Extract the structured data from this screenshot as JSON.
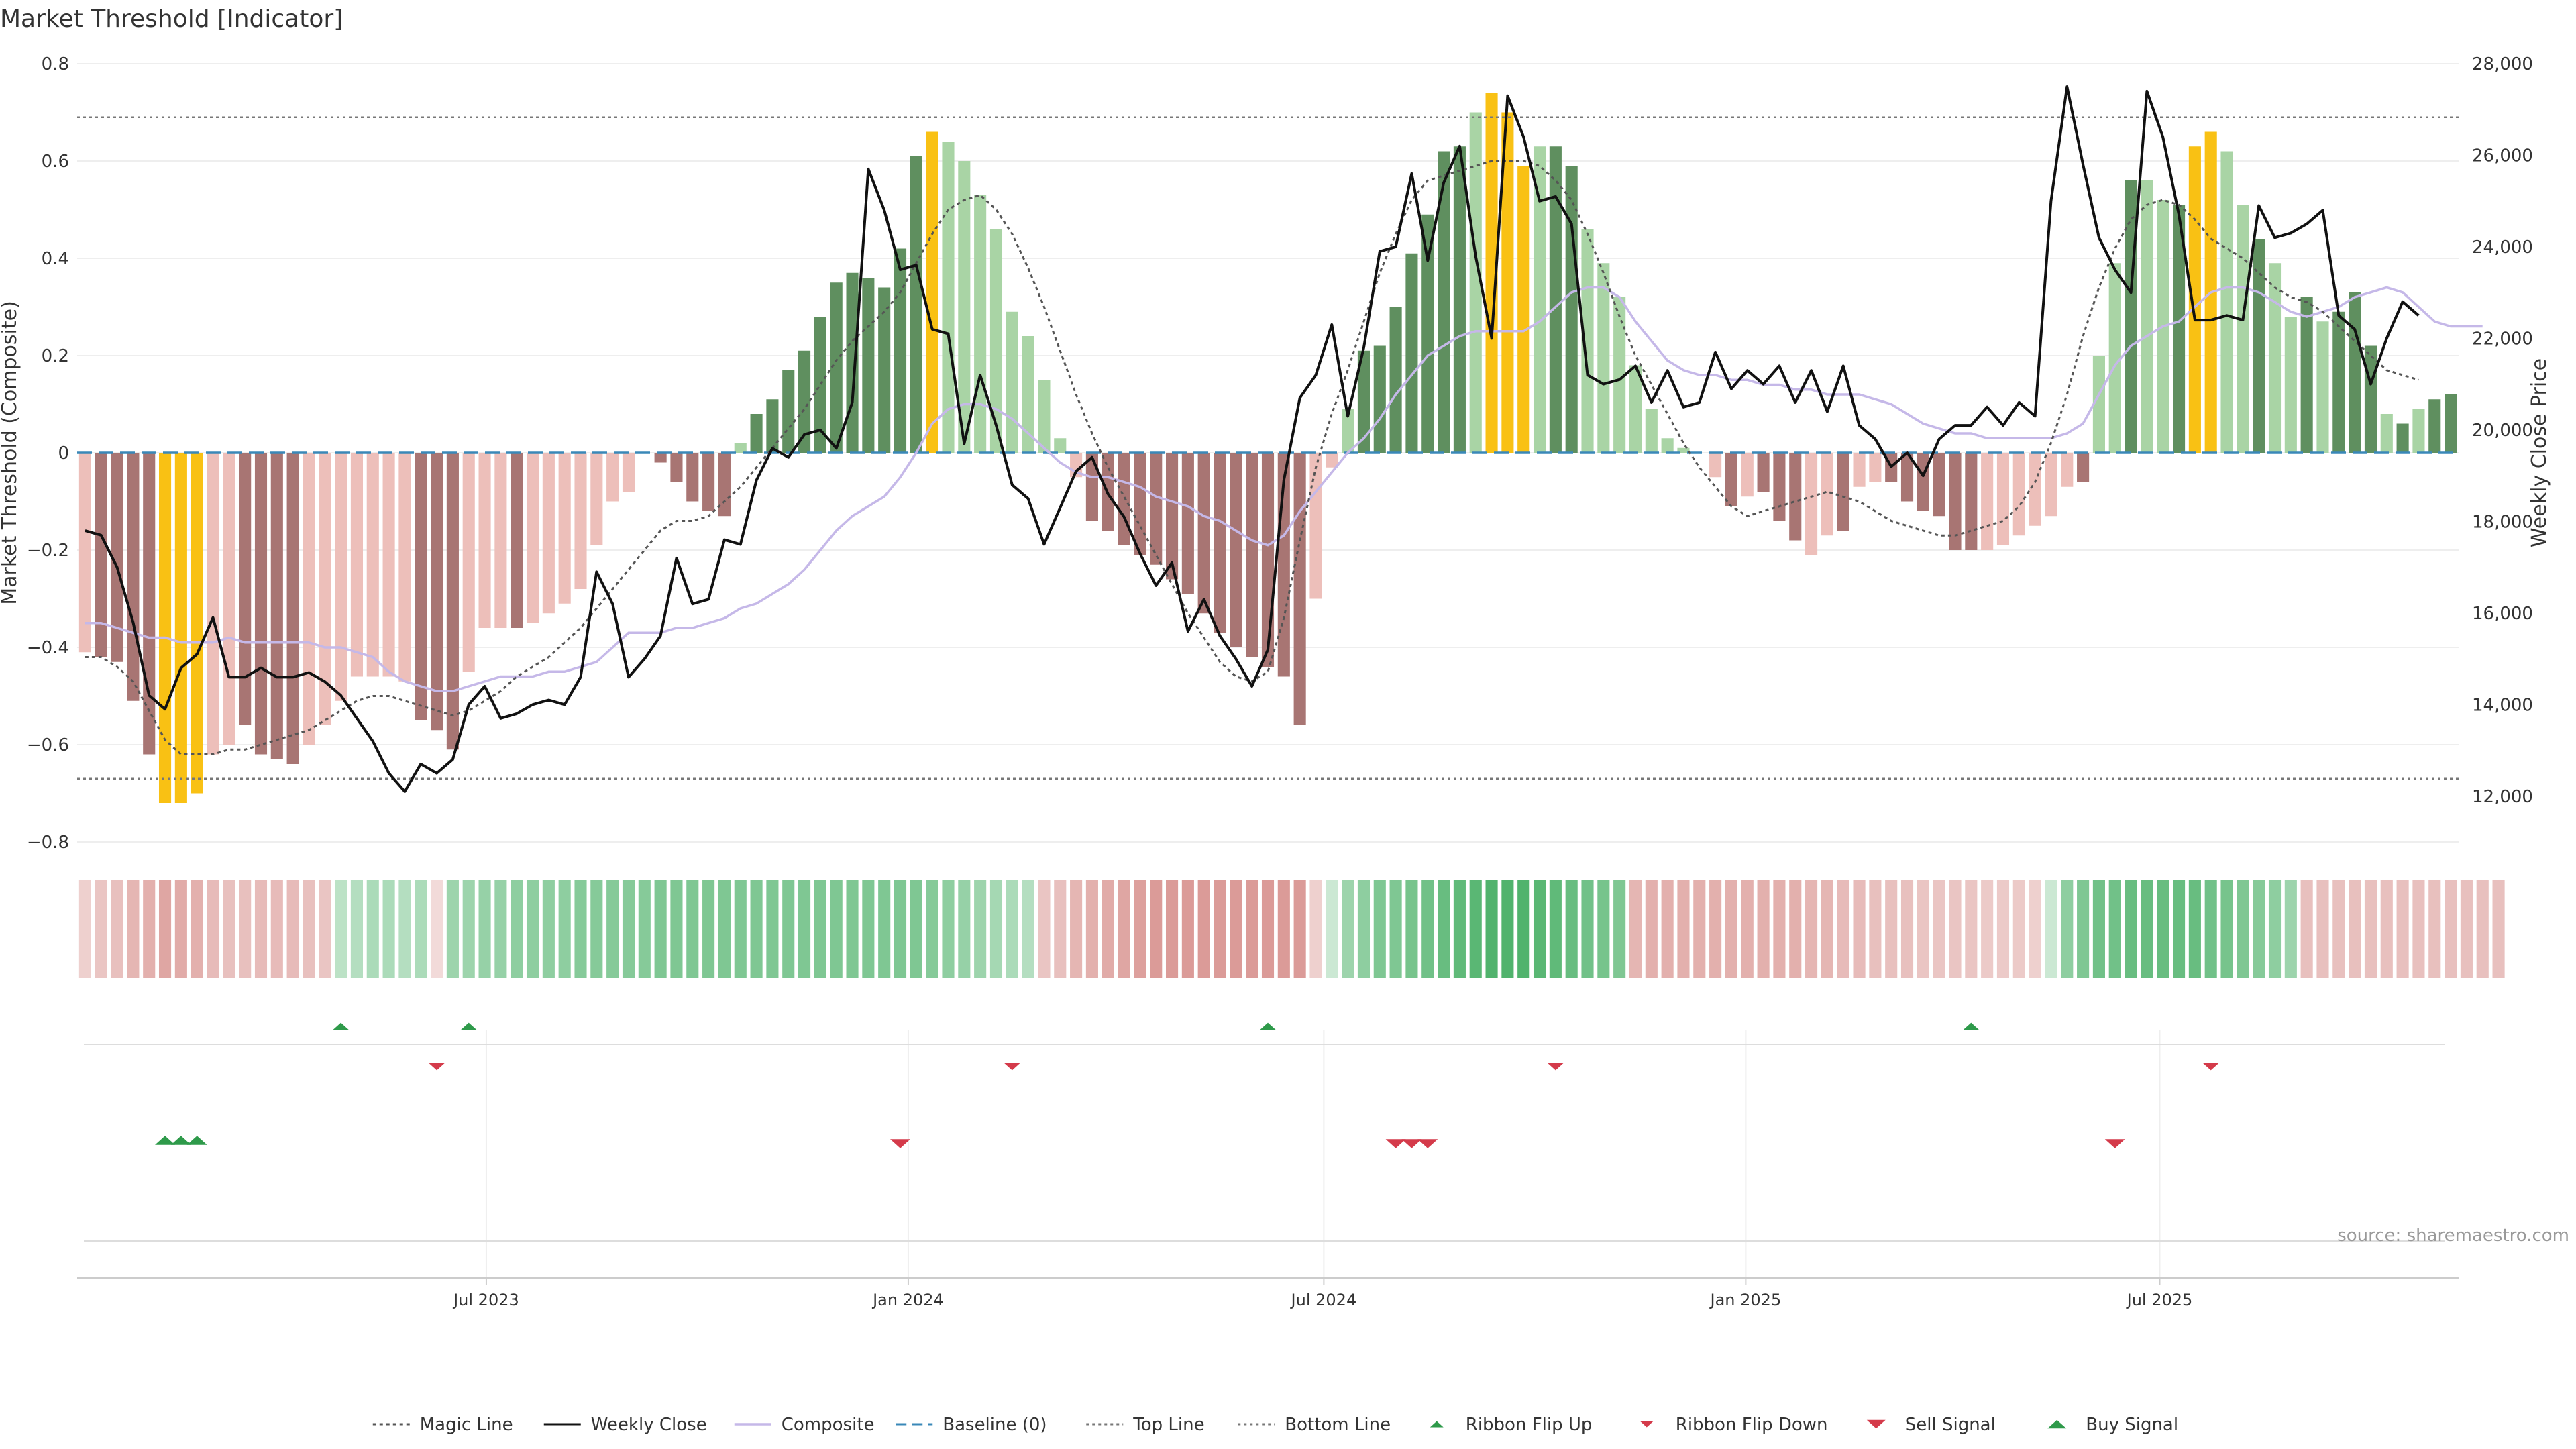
{
  "title": "Market Threshold [Indicator]",
  "source_text": "source: sharemaestro.com",
  "colors": {
    "pos_strong": "#5f8f5f",
    "pos_weak": "#a9d4a5",
    "neg_strong": "#a87573",
    "neg_weak": "#edbfba",
    "extreme": "#f9c114",
    "weekly_close": "#111111",
    "composite": "#c5b8e8",
    "magic": "#555555",
    "baseline": "#3a88b8",
    "threshold": "#777777",
    "buy": "#2e9a4a",
    "sell": "#d43a4a",
    "grid": "#eeeeee",
    "axis": "#cccccc",
    "text": "#333333"
  },
  "legend": [
    {
      "label": "Magic Line",
      "kind": "line-dotted"
    },
    {
      "label": "Weekly Close",
      "kind": "line-solid"
    },
    {
      "label": "Composite",
      "kind": "line-composite"
    },
    {
      "label": "Baseline (0)",
      "kind": "line-dashed"
    },
    {
      "label": "Top Line",
      "kind": "line-dotted-light"
    },
    {
      "label": "Bottom Line",
      "kind": "line-dotted-light"
    },
    {
      "label": "Ribbon Flip Up",
      "kind": "tri-up"
    },
    {
      "label": "Ribbon Flip Down",
      "kind": "tri-down"
    },
    {
      "label": "Sell Signal",
      "kind": "tri-down-big"
    },
    {
      "label": "Buy Signal",
      "kind": "tri-up-big"
    }
  ],
  "chart_data": {
    "type": "bar",
    "title": "Market Threshold [Indicator]",
    "ylabel": "Market Threshold (Composite)",
    "y2label": "Weekly Close Price",
    "ylim": [
      -0.8,
      0.8
    ],
    "y2lim": [
      11000,
      28000
    ],
    "yticks": [
      -0.8,
      -0.6,
      -0.4,
      -0.2,
      0,
      0.2,
      0.4,
      0.6,
      0.8
    ],
    "yticklabels": [
      "−0.8",
      "−0.6",
      "−0.4",
      "−0.2",
      "0",
      "0.2",
      "0.4",
      "0.6",
      "0.8"
    ],
    "y2ticks": [
      12000,
      14000,
      16000,
      18000,
      20000,
      22000,
      24000,
      26000,
      28000
    ],
    "y2ticklabels": [
      "12,000",
      "14,000",
      "16,000",
      "18,000",
      "20,000",
      "22,000",
      "24,000",
      "26,000",
      "28,000"
    ],
    "x_start": "2023-01-06",
    "x_weeks": 145,
    "xticks": [
      {
        "label": "Jul 2023",
        "week": 25.6
      },
      {
        "label": "Jan 2024",
        "week": 52.0
      },
      {
        "label": "Jul 2024",
        "week": 78.0
      },
      {
        "label": "Jan 2025",
        "week": 104.4
      },
      {
        "label": "Jul 2025",
        "week": 130.3
      }
    ],
    "top_line": 0.69,
    "bottom_line": -0.67,
    "baseline": 0,
    "bars": [
      -0.41,
      -0.42,
      -0.43,
      -0.51,
      -0.62,
      -0.72,
      -0.72,
      -0.7,
      -0.62,
      -0.6,
      -0.56,
      -0.62,
      -0.63,
      -0.64,
      -0.6,
      -0.56,
      -0.51,
      -0.46,
      -0.46,
      -0.46,
      -0.47,
      -0.55,
      -0.57,
      -0.61,
      -0.45,
      -0.36,
      -0.36,
      -0.36,
      -0.35,
      -0.33,
      -0.31,
      -0.28,
      -0.19,
      -0.1,
      -0.08,
      0,
      -0.02,
      -0.06,
      -0.1,
      -0.12,
      -0.13,
      0.02,
      0.08,
      0.11,
      0.17,
      0.21,
      0.28,
      0.35,
      0.37,
      0.36,
      0.34,
      0.42,
      0.61,
      0.66,
      0.64,
      0.6,
      0.53,
      0.46,
      0.29,
      0.24,
      0.15,
      0.03,
      -0.05,
      -0.14,
      -0.16,
      -0.19,
      -0.21,
      -0.23,
      -0.26,
      -0.29,
      -0.33,
      -0.37,
      -0.4,
      -0.42,
      -0.44,
      -0.46,
      -0.56,
      -0.3,
      -0.03,
      0.09,
      0.21,
      0.22,
      0.3,
      0.41,
      0.49,
      0.62,
      0.63,
      0.7,
      0.74,
      0.7,
      0.59,
      0.63,
      0.63,
      0.59,
      0.46,
      0.39,
      0.32,
      0.18,
      0.09,
      0.03,
      0.01,
      0,
      -0.05,
      -0.11,
      -0.09,
      -0.08,
      -0.14,
      -0.18,
      -0.21,
      -0.17,
      -0.16,
      -0.07,
      -0.06,
      -0.06,
      -0.1,
      -0.12,
      -0.13,
      -0.2,
      -0.2,
      -0.2,
      -0.19,
      -0.17,
      -0.15,
      -0.13,
      -0.07,
      -0.06,
      0.2,
      0.39,
      0.56,
      0.56,
      0.52,
      0.51,
      0.63,
      0.66,
      0.62,
      0.51,
      0.44,
      0.39,
      0.28,
      0.32,
      0.27,
      0.29,
      0.33,
      0.22,
      0.08,
      0.06,
      0.09,
      0.11,
      0.12
    ],
    "bar_kind": [
      "w",
      "s",
      "s",
      "s",
      "s",
      "e",
      "e",
      "e",
      "w",
      "w",
      "s",
      "s",
      "s",
      "s",
      "w",
      "w",
      "w",
      "w",
      "w",
      "w",
      "w",
      "s",
      "s",
      "s",
      "w",
      "w",
      "w",
      "s",
      "w",
      "w",
      "w",
      "w",
      "w",
      "w",
      "w",
      "w",
      "s",
      "s",
      "s",
      "s",
      "s",
      "w",
      "s",
      "s",
      "s",
      "s",
      "s",
      "s",
      "s",
      "s",
      "s",
      "s",
      "s",
      "e",
      "w",
      "w",
      "w",
      "w",
      "w",
      "w",
      "w",
      "w",
      "w",
      "s",
      "s",
      "s",
      "s",
      "s",
      "s",
      "s",
      "s",
      "s",
      "s",
      "s",
      "s",
      "s",
      "s",
      "w",
      "w",
      "w",
      "s",
      "s",
      "s",
      "s",
      "s",
      "s",
      "s",
      "w",
      "e",
      "e",
      "e",
      "w",
      "s",
      "s",
      "w",
      "w",
      "w",
      "w",
      "w",
      "w",
      "w",
      "w",
      "w",
      "s",
      "w",
      "s",
      "s",
      "s",
      "w",
      "w",
      "s",
      "w",
      "w",
      "s",
      "s",
      "s",
      "s",
      "s",
      "s",
      "w",
      "w",
      "w",
      "w",
      "w",
      "w",
      "s",
      "w",
      "w",
      "s",
      "w",
      "w",
      "s",
      "e",
      "e",
      "w",
      "w",
      "s",
      "w",
      "w",
      "s",
      "w",
      "s",
      "s",
      "s",
      "w",
      "s",
      "w",
      "s",
      "s"
    ],
    "weekly_close": [
      17800,
      17700,
      17000,
      15800,
      14200,
      13900,
      14800,
      15100,
      15900,
      14600,
      14600,
      14800,
      14600,
      14600,
      14700,
      14500,
      14200,
      13700,
      13200,
      12500,
      12100,
      12700,
      12500,
      12800,
      14000,
      14400,
      13700,
      13800,
      14000,
      14100,
      14000,
      14600,
      16900,
      16200,
      14600,
      15000,
      15500,
      17200,
      16200,
      16300,
      17600,
      17500,
      18900,
      19600,
      19400,
      19900,
      20000,
      19600,
      20600,
      25700,
      24800,
      23500,
      23600,
      22200,
      22100,
      19700,
      21200,
      20100,
      18800,
      18500,
      17500,
      18300,
      19100,
      19400,
      18600,
      18100,
      17300,
      16600,
      17100,
      15600,
      16300,
      15500,
      15000,
      14400,
      15200,
      18900,
      20700,
      21200,
      22300,
      20300,
      21800,
      23900,
      24000,
      25600,
      23700,
      25400,
      26200,
      23800,
      22000,
      27300,
      26400,
      25000,
      25100,
      24500,
      21200,
      21000,
      21100,
      21400,
      20600,
      21300,
      20500,
      20600,
      21700,
      20900,
      21300,
      21000,
      21400,
      20600,
      21300,
      20400,
      21400,
      20100,
      19800,
      19200,
      19500,
      19000,
      19800,
      20100,
      20100,
      20500,
      20100,
      20600,
      20300,
      25000,
      27500,
      25800,
      24200,
      23500,
      23000,
      27400,
      26400,
      24700,
      22400,
      22400,
      22500,
      22400,
      24900,
      24200,
      24300,
      24500,
      24800,
      22500,
      22200,
      21000,
      22000,
      22800,
      22500
    ],
    "composite": [
      -0.35,
      -0.35,
      -0.36,
      -0.37,
      -0.38,
      -0.38,
      -0.39,
      -0.39,
      -0.39,
      -0.38,
      -0.39,
      -0.39,
      -0.39,
      -0.39,
      -0.39,
      -0.4,
      -0.4,
      -0.41,
      -0.42,
      -0.45,
      -0.47,
      -0.48,
      -0.49,
      -0.49,
      -0.48,
      -0.47,
      -0.46,
      -0.46,
      -0.46,
      -0.45,
      -0.45,
      -0.44,
      -0.43,
      -0.4,
      -0.37,
      -0.37,
      -0.37,
      -0.36,
      -0.36,
      -0.35,
      -0.34,
      -0.32,
      -0.31,
      -0.29,
      -0.27,
      -0.24,
      -0.2,
      -0.16,
      -0.13,
      -0.11,
      -0.09,
      -0.05,
      0.0,
      0.06,
      0.09,
      0.1,
      0.1,
      0.09,
      0.07,
      0.04,
      0.01,
      -0.02,
      -0.04,
      -0.05,
      -0.05,
      -0.06,
      -0.07,
      -0.09,
      -0.1,
      -0.11,
      -0.13,
      -0.14,
      -0.16,
      -0.18,
      -0.19,
      -0.17,
      -0.12,
      -0.08,
      -0.04,
      0.0,
      0.03,
      0.07,
      0.12,
      0.16,
      0.2,
      0.22,
      0.24,
      0.25,
      0.25,
      0.25,
      0.25,
      0.27,
      0.3,
      0.33,
      0.34,
      0.34,
      0.32,
      0.27,
      0.23,
      0.19,
      0.17,
      0.16,
      0.16,
      0.15,
      0.15,
      0.14,
      0.14,
      0.13,
      0.13,
      0.12,
      0.12,
      0.12,
      0.11,
      0.1,
      0.08,
      0.06,
      0.05,
      0.04,
      0.04,
      0.03,
      0.03,
      0.03,
      0.03,
      0.03,
      0.04,
      0.06,
      0.12,
      0.18,
      0.22,
      0.24,
      0.26,
      0.27,
      0.3,
      0.33,
      0.34,
      0.34,
      0.33,
      0.31,
      0.29,
      0.28,
      0.29,
      0.3,
      0.32,
      0.33,
      0.34,
      0.33,
      0.3,
      0.27,
      0.26,
      0.26,
      0.26
    ],
    "magic_line": [
      -0.42,
      -0.42,
      -0.44,
      -0.47,
      -0.53,
      -0.59,
      -0.62,
      -0.62,
      -0.62,
      -0.61,
      -0.61,
      -0.6,
      -0.59,
      -0.58,
      -0.57,
      -0.55,
      -0.53,
      -0.51,
      -0.5,
      -0.5,
      -0.51,
      -0.52,
      -0.53,
      -0.54,
      -0.53,
      -0.51,
      -0.49,
      -0.46,
      -0.44,
      -0.42,
      -0.39,
      -0.36,
      -0.32,
      -0.28,
      -0.24,
      -0.2,
      -0.16,
      -0.14,
      -0.14,
      -0.13,
      -0.1,
      -0.07,
      -0.03,
      0.01,
      0.05,
      0.09,
      0.14,
      0.19,
      0.23,
      0.26,
      0.29,
      0.33,
      0.39,
      0.45,
      0.5,
      0.52,
      0.53,
      0.5,
      0.45,
      0.38,
      0.3,
      0.21,
      0.12,
      0.04,
      -0.03,
      -0.09,
      -0.15,
      -0.21,
      -0.27,
      -0.33,
      -0.38,
      -0.43,
      -0.46,
      -0.47,
      -0.45,
      -0.34,
      -0.18,
      -0.03,
      0.08,
      0.17,
      0.27,
      0.37,
      0.45,
      0.52,
      0.56,
      0.57,
      0.58,
      0.59,
      0.6,
      0.6,
      0.6,
      0.59,
      0.56,
      0.52,
      0.45,
      0.37,
      0.28,
      0.2,
      0.14,
      0.08,
      0.02,
      -0.03,
      -0.07,
      -0.11,
      -0.13,
      -0.12,
      -0.11,
      -0.1,
      -0.09,
      -0.08,
      -0.09,
      -0.1,
      -0.12,
      -0.14,
      -0.15,
      -0.16,
      -0.17,
      -0.17,
      -0.16,
      -0.15,
      -0.14,
      -0.11,
      -0.06,
      0.02,
      0.12,
      0.24,
      0.34,
      0.42,
      0.48,
      0.51,
      0.52,
      0.51,
      0.48,
      0.44,
      0.42,
      0.4,
      0.37,
      0.34,
      0.32,
      0.31,
      0.29,
      0.26,
      0.23,
      0.2,
      0.17,
      0.16,
      0.15
    ],
    "ribbon_flip_up_weeks": [
      16,
      24,
      74,
      118
    ],
    "ribbon_flip_down_weeks": [
      22,
      58,
      92,
      133
    ],
    "buy_signal_weeks": [
      5,
      6,
      7
    ],
    "sell_signal_weeks": [
      51,
      82,
      83,
      84,
      127
    ],
    "ribbon": [
      -0.2,
      -0.3,
      -0.35,
      -0.45,
      -0.5,
      -0.6,
      -0.55,
      -0.5,
      -0.4,
      -0.35,
      -0.35,
      -0.4,
      -0.4,
      -0.4,
      -0.35,
      -0.3,
      0.2,
      0.25,
      0.3,
      0.3,
      0.25,
      0.3,
      -0.1,
      0.4,
      0.4,
      0.45,
      0.45,
      0.5,
      0.5,
      0.5,
      0.5,
      0.55,
      0.55,
      0.55,
      0.55,
      0.55,
      0.6,
      0.6,
      0.6,
      0.6,
      0.6,
      0.6,
      0.6,
      0.6,
      0.6,
      0.6,
      0.6,
      0.6,
      0.6,
      0.6,
      0.6,
      0.6,
      0.6,
      0.55,
      0.5,
      0.45,
      0.4,
      0.35,
      0.3,
      0.25,
      -0.3,
      -0.35,
      -0.45,
      -0.5,
      -0.55,
      -0.6,
      -0.65,
      -0.7,
      -0.7,
      -0.7,
      -0.7,
      -0.7,
      -0.7,
      -0.7,
      -0.7,
      -0.7,
      -0.7,
      -0.2,
      0.1,
      0.4,
      0.5,
      0.6,
      0.6,
      0.65,
      0.7,
      0.75,
      0.8,
      0.85,
      0.9,
      0.9,
      0.9,
      0.85,
      0.8,
      0.75,
      0.7,
      0.65,
      0.6,
      -0.45,
      -0.5,
      -0.5,
      -0.5,
      -0.5,
      -0.5,
      -0.5,
      -0.5,
      -0.5,
      -0.5,
      -0.5,
      -0.45,
      -0.45,
      -0.4,
      -0.4,
      -0.35,
      -0.35,
      -0.35,
      -0.3,
      -0.3,
      -0.3,
      -0.3,
      -0.25,
      -0.25,
      -0.25,
      -0.2,
      0.1,
      0.5,
      0.6,
      0.7,
      0.7,
      0.75,
      0.75,
      0.75,
      0.75,
      0.75,
      0.7,
      0.65,
      0.6,
      0.55,
      0.5,
      0.4,
      -0.35,
      -0.35,
      -0.35,
      -0.35,
      -0.35,
      -0.35,
      -0.35,
      -0.35,
      -0.35,
      -0.35,
      -0.35,
      -0.35,
      -0.35
    ]
  }
}
